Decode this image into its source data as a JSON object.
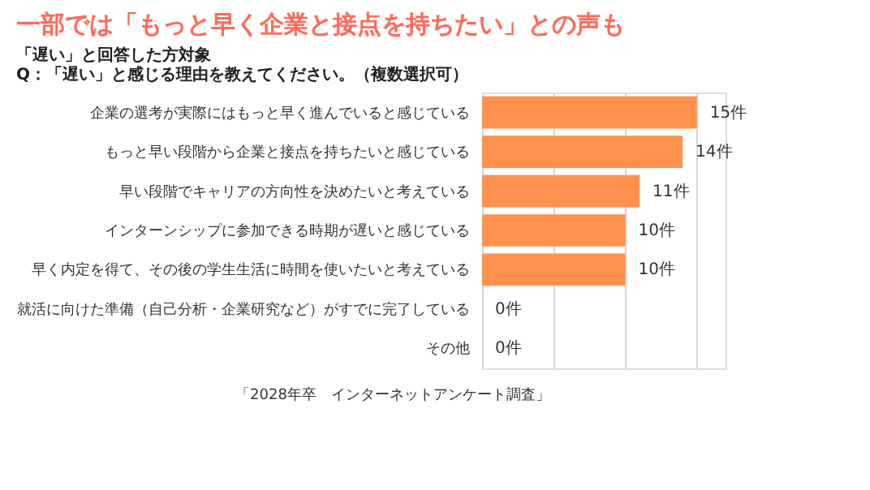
{
  "chart_data": {
    "type": "bar",
    "orientation": "horizontal",
    "title": "一部では「もっと早く企業と接点を持ちたい」との声も",
    "subtitle": "「遅い」と回答した方対象",
    "annotations": [
      "Q：「遅い」と感じる理由を教えてください。（複数選択可）",
      "「2028年卒　インターネットアンケート調査」"
    ],
    "categories": [
      "企業の選考が実際にはもっと早く進んでいると感じている",
      "もっと早い段階から企業と接点を持ちたいと感じている",
      "早い段階でキャリアの方向性を決めたいと考えている",
      "インターンシップに参加できる時期が遅いと感じている",
      "早く内定を得て、その後の学生生活に時間を使いたいと考えている",
      "就活に向けた準備（自己分析・企業研究など）がすでに完了している",
      "その他"
    ],
    "values": [
      15,
      14,
      11,
      10,
      10,
      0,
      0
    ],
    "value_labels": [
      "15件",
      "14件",
      "11件",
      "10件",
      "10件",
      "0件",
      "0件"
    ],
    "color": "#ff914d",
    "xlim": [
      0,
      17
    ],
    "xticks": [
      {
        "value": 0,
        "label": null
      },
      {
        "value": 5,
        "label": null
      },
      {
        "value": 10,
        "label": null
      },
      {
        "value": 15,
        "label": null
      }
    ],
    "grid": "x"
  }
}
